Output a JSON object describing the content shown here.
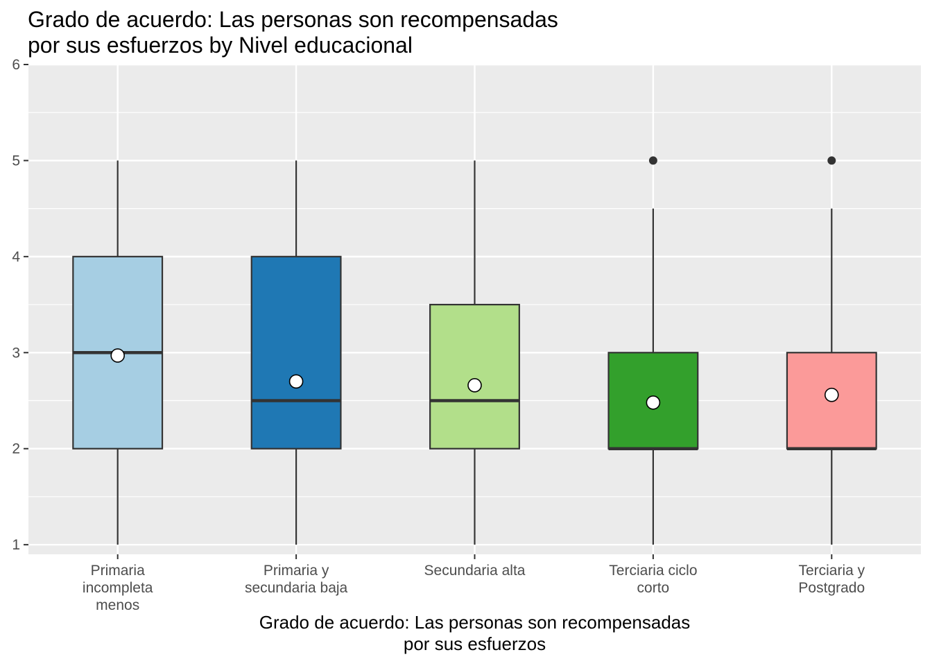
{
  "chart_data": {
    "type": "boxplot",
    "title": "Grado de acuerdo: Las personas son recompensadas\npor sus esfuerzos by Nivel educacional",
    "xlabel": "Grado de acuerdo: Las personas son recompensadas\npor sus esfuerzos",
    "ylabel": "",
    "ylim": [
      1,
      6
    ],
    "yticks": [
      1,
      2,
      3,
      4,
      5,
      6
    ],
    "grid": true,
    "legend": "none",
    "categories": [
      "Primaria\nincompleta\nmenos",
      "Primaria y\nsecundaria baja",
      "Secundaria alta",
      "Terciaria ciclo\ncorto",
      "Terciaria y\nPostgrado"
    ],
    "boxes": [
      {
        "whisker_low": 1,
        "q1": 2,
        "median": 3,
        "q3": 4,
        "whisker_high": 5,
        "mean": 2.97,
        "outliers": [],
        "color": "#A6CEE3"
      },
      {
        "whisker_low": 1,
        "q1": 2,
        "median": 2.5,
        "q3": 4,
        "whisker_high": 5,
        "mean": 2.7,
        "outliers": [],
        "color": "#1F78B4"
      },
      {
        "whisker_low": 1,
        "q1": 2,
        "median": 2.5,
        "q3": 3.5,
        "whisker_high": 5,
        "mean": 2.66,
        "outliers": [],
        "color": "#B2DF8A"
      },
      {
        "whisker_low": 1,
        "q1": 2,
        "median": 2,
        "q3": 3,
        "whisker_high": 4.5,
        "mean": 2.48,
        "outliers": [
          5
        ],
        "color": "#33A02C"
      },
      {
        "whisker_low": 1,
        "q1": 2,
        "median": 2,
        "q3": 3,
        "whisker_high": 4.5,
        "mean": 2.56,
        "outliers": [
          5
        ],
        "color": "#FB9A99"
      }
    ]
  }
}
